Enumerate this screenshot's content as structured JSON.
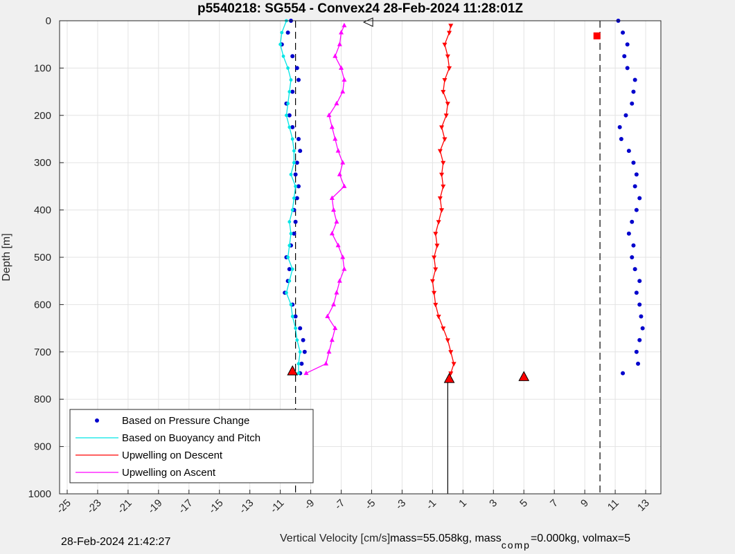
{
  "chart_data": {
    "type": "scatter",
    "title": "p5540218: SG554 - Convex24 28-Feb-2024 11:28:01Z",
    "xlabel": "Vertical Velocity [cm/s]",
    "ylabel": "Depth [m]",
    "xlim": [
      -25.5,
      14
    ],
    "ylim": [
      0,
      1000
    ],
    "y_reversed": true,
    "grid": true,
    "x_ticks": [
      -25,
      -23,
      -21,
      -19,
      -17,
      -15,
      -13,
      -11,
      -9,
      -7,
      -5,
      -3,
      -1,
      1,
      3,
      5,
      7,
      9,
      11,
      13
    ],
    "x_tick_labels": [
      "-25",
      "-23",
      "-21",
      "-19",
      "-17",
      "-15",
      "-13",
      "-11",
      "-9",
      "-7",
      "-5",
      "-3",
      "-1",
      "1",
      "3",
      "5",
      "7",
      "9",
      "11",
      "13"
    ],
    "y_ticks": [
      0,
      100,
      200,
      300,
      400,
      500,
      600,
      700,
      800,
      900,
      1000
    ],
    "y_tick_labels": [
      "0",
      "100",
      "200",
      "300",
      "400",
      "500",
      "600",
      "700",
      "800",
      "900",
      "1000"
    ],
    "legend_location": "bottom-left",
    "reference_lines": [
      {
        "x": -10,
        "style": "dashed",
        "ymax": 1000
      },
      {
        "x": 10,
        "style": "dashed",
        "ymax": 1000
      },
      {
        "x": 0,
        "style": "solid",
        "ymin": 755,
        "ymax": 1000
      }
    ],
    "series": [
      {
        "name": "Based on Pressure Change",
        "color": "#0000cc",
        "style": "dots",
        "profiles": [
          {
            "depth": [
              0,
              25,
              50,
              75,
              100,
              125,
              150,
              175,
              200,
              225,
              250,
              275,
              300,
              325,
              350,
              375,
              400,
              425,
              450,
              475,
              500,
              525,
              550,
              575,
              600,
              625,
              650,
              675,
              700,
              725,
              745
            ],
            "x": [
              -10.3,
              -10.5,
              -10.9,
              -10.2,
              -9.9,
              -9.8,
              -10.2,
              -10.6,
              -10.4,
              -10.2,
              -9.8,
              -9.7,
              -9.9,
              -10,
              -9.8,
              -9.9,
              -10.1,
              -10,
              -10.1,
              -10.3,
              -10.6,
              -10.4,
              -10.5,
              -10.7,
              -10.2,
              -10,
              -9.7,
              -9.5,
              -9.4,
              -9.6,
              -9.7
            ]
          },
          {
            "depth": [
              0,
              25,
              50,
              75,
              100,
              125,
              150,
              175,
              200,
              225,
              250,
              275,
              300,
              325,
              350,
              375,
              400,
              425,
              450,
              475,
              500,
              525,
              550,
              575,
              600,
              625,
              650,
              675,
              700,
              725,
              745
            ],
            "x": [
              11.2,
              11.5,
              11.8,
              11.6,
              11.8,
              12.3,
              12.2,
              12.1,
              11.7,
              11.3,
              11.4,
              11.9,
              12.2,
              12.4,
              12.3,
              12.6,
              12.4,
              12.1,
              11.9,
              12.2,
              12.1,
              12.3,
              12.6,
              12.4,
              12.6,
              12.7,
              12.8,
              12.6,
              12.4,
              12.5,
              11.5
            ]
          }
        ]
      },
      {
        "name": "Based on Buoyancy and Pitch",
        "color": "#00e5e5",
        "style": "line-dots",
        "profiles": [
          {
            "depth": [
              0,
              25,
              50,
              75,
              100,
              125,
              150,
              175,
              200,
              225,
              250,
              275,
              300,
              325,
              350,
              375,
              400,
              425,
              450,
              475,
              500,
              525,
              550,
              575,
              600,
              625,
              650,
              675,
              700,
              725,
              745
            ],
            "x": [
              -10.6,
              -10.9,
              -11,
              -10.8,
              -10.5,
              -10.3,
              -10.4,
              -10.5,
              -10.6,
              -10.4,
              -10.2,
              -10.1,
              -10.1,
              -10.3,
              -10,
              -10.1,
              -10.2,
              -10.4,
              -10.3,
              -10.4,
              -10.5,
              -10.2,
              -10.4,
              -10.6,
              -10.3,
              -10.2,
              -10,
              -9.9,
              -9.7,
              -9.8,
              -9.8
            ]
          }
        ]
      },
      {
        "name": "Upwelling on Descent",
        "color": "#ff0000",
        "style": "line-markers",
        "profiles": [
          {
            "depth": [
              10,
              25,
              50,
              75,
              100,
              125,
              150,
              175,
              200,
              225,
              250,
              275,
              300,
              325,
              350,
              375,
              400,
              425,
              450,
              475,
              500,
              525,
              550,
              575,
              600,
              625,
              650,
              675,
              700,
              725,
              745
            ],
            "x": [
              0.2,
              0.1,
              -0.2,
              0,
              0.1,
              -0.2,
              -0.3,
              0,
              -0.1,
              -0.4,
              -0.2,
              -0.5,
              -0.3,
              -0.4,
              -0.3,
              -0.5,
              -0.4,
              -0.6,
              -0.8,
              -0.7,
              -0.9,
              -0.8,
              -1,
              -0.9,
              -0.8,
              -0.6,
              -0.3,
              0,
              0.2,
              0.4,
              0.2
            ]
          }
        ]
      },
      {
        "name": "Upwelling on Ascent",
        "color": "#ff00ff",
        "style": "line-markers",
        "profiles": [
          {
            "depth": [
              10,
              25,
              50,
              75,
              100,
              125,
              150,
              175,
              200,
              225,
              250,
              275,
              300,
              325,
              350,
              375,
              400,
              425,
              450,
              475,
              500,
              525,
              550,
              575,
              600,
              625,
              650,
              675,
              700,
              725,
              745
            ],
            "x": [
              -6.8,
              -7,
              -7.1,
              -7.4,
              -7,
              -6.8,
              -6.9,
              -7.3,
              -7.8,
              -7.6,
              -7.4,
              -7.2,
              -6.9,
              -7.1,
              -6.8,
              -7.6,
              -7.5,
              -7.3,
              -7.6,
              -7.2,
              -6.9,
              -6.8,
              -7.1,
              -7.3,
              -7.5,
              -7.9,
              -7.4,
              -7.6,
              -7.8,
              -8,
              -9.3
            ]
          }
        ]
      }
    ],
    "markers": [
      {
        "x": -10.2,
        "depth": 740,
        "shape": "triangle",
        "color": "#ff0000"
      },
      {
        "x": 0.1,
        "depth": 756,
        "shape": "triangle",
        "color": "#ff0000"
      },
      {
        "x": 5,
        "depth": 752,
        "shape": "triangle",
        "color": "#ff0000"
      },
      {
        "x": 9.8,
        "depth": 32,
        "shape": "square",
        "color": "#ff0000"
      },
      {
        "x": -5.2,
        "depth": 3,
        "shape": "triangle-left",
        "color": "#ffffff"
      }
    ]
  },
  "footer": {
    "timestamp": "28-Feb-2024 21:42:27",
    "mass_text": "mass=55.058kg, mass",
    "comp_sub": "comp",
    "mass_comp_text": "=0.000kg, volmax=5"
  }
}
